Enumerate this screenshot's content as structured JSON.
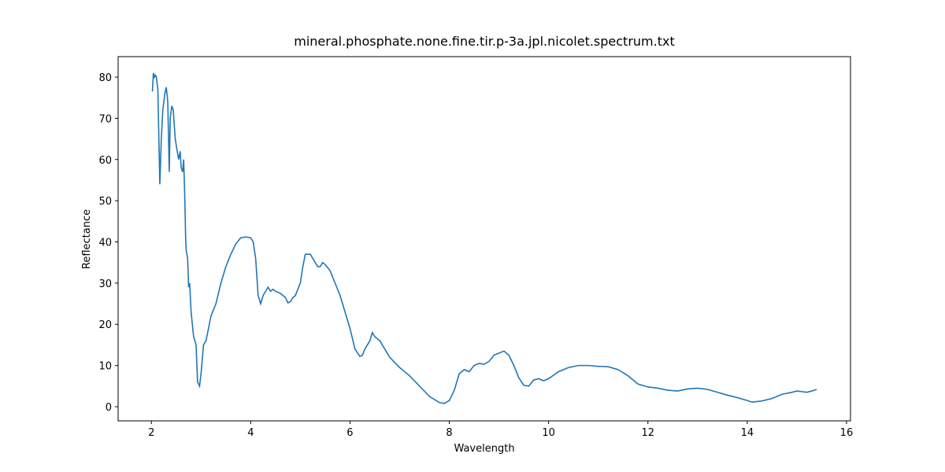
{
  "chart_data": {
    "type": "line",
    "title": "mineral.phosphate.none.fine.tir.p-3a.jpl.nicolet.spectrum.txt",
    "x_label": "Wavelength",
    "y_label": "Reflectance",
    "xlim": [
      1.33,
      16.08
    ],
    "ylim": [
      -3.44,
      84.97
    ],
    "xticks": [
      2,
      4,
      6,
      8,
      10,
      12,
      14,
      16
    ],
    "yticks": [
      0,
      10,
      20,
      30,
      40,
      50,
      60,
      70,
      80
    ],
    "series": [
      {
        "color": "#1f77b4",
        "x": [
          2.02,
          2.04,
          2.06,
          2.08,
          2.1,
          2.13,
          2.17,
          2.2,
          2.23,
          2.27,
          2.3,
          2.33,
          2.36,
          2.38,
          2.41,
          2.44,
          2.48,
          2.52,
          2.55,
          2.58,
          2.6,
          2.63,
          2.65,
          2.67,
          2.69,
          2.7,
          2.73,
          2.75,
          2.77,
          2.8,
          2.85,
          2.9,
          2.93,
          2.97,
          3.0,
          3.05,
          3.1,
          3.15,
          3.2,
          3.3,
          3.4,
          3.5,
          3.6,
          3.7,
          3.8,
          3.9,
          4.0,
          4.05,
          4.1,
          4.15,
          4.2,
          4.25,
          4.3,
          4.35,
          4.4,
          4.45,
          4.5,
          4.6,
          4.7,
          4.75,
          4.8,
          4.85,
          4.9,
          5.0,
          5.05,
          5.1,
          5.2,
          5.3,
          5.35,
          5.4,
          5.45,
          5.5,
          5.6,
          5.7,
          5.8,
          5.9,
          6.0,
          6.1,
          6.2,
          6.25,
          6.3,
          6.4,
          6.45,
          6.5,
          6.6,
          6.7,
          6.8,
          7.0,
          7.2,
          7.4,
          7.6,
          7.8,
          7.9,
          8.0,
          8.1,
          8.2,
          8.3,
          8.4,
          8.5,
          8.6,
          8.7,
          8.8,
          8.9,
          9.0,
          9.1,
          9.2,
          9.3,
          9.4,
          9.5,
          9.6,
          9.7,
          9.8,
          9.9,
          10.0,
          10.2,
          10.4,
          10.6,
          10.8,
          11.0,
          11.2,
          11.4,
          11.6,
          11.8,
          12.0,
          12.2,
          12.4,
          12.6,
          12.8,
          13.0,
          13.2,
          13.4,
          13.6,
          13.8,
          14.0,
          14.1,
          14.3,
          14.5,
          14.7,
          14.9,
          15.0,
          15.2,
          15.3,
          15.4
        ],
        "values": [
          76.5,
          81,
          80,
          80.5,
          80,
          77,
          54,
          65,
          72,
          76,
          77.5,
          74,
          57,
          70,
          73,
          72,
          65,
          62,
          60,
          62,
          58,
          57,
          60,
          52,
          41,
          38,
          36,
          29,
          30,
          23,
          17,
          15,
          6,
          5,
          8,
          15,
          16,
          19,
          22,
          25,
          30,
          34,
          37,
          39.5,
          41,
          41.2,
          41,
          40,
          36,
          27,
          25,
          27,
          28,
          29,
          28,
          28.5,
          28,
          27.5,
          26.5,
          25.2,
          25.5,
          26.5,
          27,
          30,
          34,
          37,
          37,
          35,
          34,
          34,
          35,
          34.5,
          33,
          30,
          27,
          23,
          19,
          14,
          12.2,
          12.5,
          14,
          16,
          18,
          17,
          16,
          14,
          12,
          9.5,
          7.5,
          5,
          2.5,
          1,
          0.8,
          1.5,
          4,
          8,
          9,
          8.5,
          10,
          10.5,
          10.3,
          11,
          12.5,
          13,
          13.5,
          12.5,
          10,
          7,
          5.2,
          5,
          6.5,
          6.8,
          6.3,
          6.8,
          8.5,
          9.5,
          10,
          10,
          9.8,
          9.7,
          9,
          7.5,
          5.5,
          4.8,
          4.5,
          4.0,
          3.8,
          4.3,
          4.5,
          4.2,
          3.5,
          2.8,
          2.2,
          1.5,
          1.1,
          1.4,
          2,
          3,
          3.5,
          3.8,
          3.5,
          3.8,
          4.2
        ]
      }
    ]
  }
}
